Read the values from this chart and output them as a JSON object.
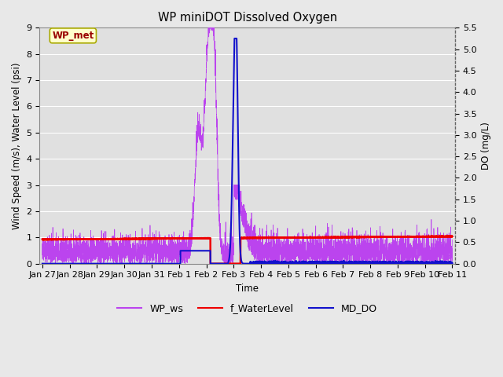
{
  "title": "WP miniDOT Dissolved Oxygen",
  "xlabel": "Time",
  "ylabel_left": "Wind Speed (m/s), Water Level (psi)",
  "ylabel_right": "DO (mg/L)",
  "annotation_text": "WP_met",
  "annotation_bg": "#ffffcc",
  "annotation_border": "#aaaa00",
  "annotation_text_color": "#990000",
  "ylim_left": [
    0.0,
    9.0
  ],
  "ylim_right": [
    0.0,
    5.5
  ],
  "yticks_left": [
    0.0,
    1.0,
    2.0,
    3.0,
    4.0,
    5.0,
    6.0,
    7.0,
    8.0,
    9.0
  ],
  "yticks_right": [
    0.0,
    0.5,
    1.0,
    1.5,
    2.0,
    2.5,
    3.0,
    3.5,
    4.0,
    4.5,
    5.0,
    5.5
  ],
  "background_color": "#e8e8e8",
  "plot_bg_color": "#e0e0e0",
  "grid_color": "#ffffff",
  "wp_ws_color": "#bb44ee",
  "f_waterlevel_color": "#ee0000",
  "md_do_color": "#1111cc",
  "legend_labels": [
    "WP_ws",
    "f_WaterLevel",
    "MD_DO"
  ],
  "legend_colors": [
    "#bb44ee",
    "#ee0000",
    "#1111cc"
  ]
}
